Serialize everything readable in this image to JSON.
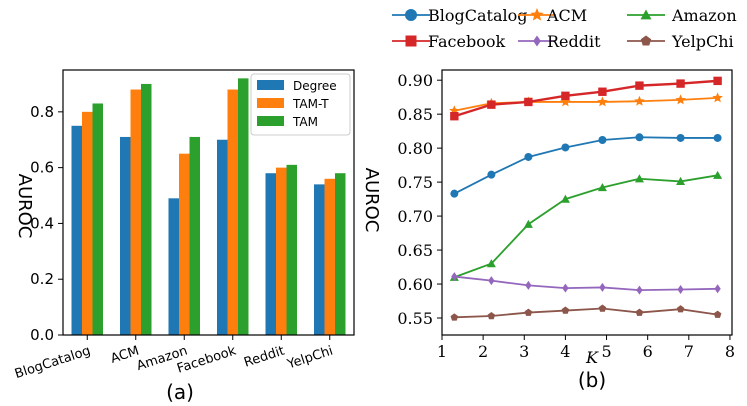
{
  "chart_data": [
    {
      "type": "bar",
      "caption": "(a)",
      "ylabel": "AUROC",
      "xlabel": "",
      "ylim": [
        0.0,
        0.95
      ],
      "yticks": [
        0.0,
        0.2,
        0.4,
        0.6,
        0.8
      ],
      "ytick_labels": [
        "0.0",
        "0.2",
        "0.4",
        "0.6",
        "0.8"
      ],
      "categories": [
        "BlogCatalog",
        "ACM",
        "Amazon",
        "Facebook",
        "Reddit",
        "YelpChi"
      ],
      "legend_position": "top-right",
      "series": [
        {
          "name": "Degree",
          "color": "#1f77b4",
          "values": [
            0.75,
            0.71,
            0.49,
            0.7,
            0.58,
            0.54
          ]
        },
        {
          "name": "TAM-T",
          "color": "#ff7f0e",
          "values": [
            0.8,
            0.88,
            0.65,
            0.88,
            0.6,
            0.56
          ]
        },
        {
          "name": "TAM",
          "color": "#2ca02c",
          "values": [
            0.83,
            0.9,
            0.71,
            0.92,
            0.61,
            0.58
          ]
        }
      ]
    },
    {
      "type": "line",
      "caption": "(b)",
      "ylabel": "AUROC",
      "xlabel": "K",
      "xlim": [
        1.0,
        8.05
      ],
      "ylim": [
        0.525,
        0.915
      ],
      "xticks": [
        1,
        2,
        3,
        4,
        5,
        6,
        7,
        8
      ],
      "xtick_labels": [
        "1",
        "2",
        "3",
        "4",
        "5",
        "6",
        "7",
        "8"
      ],
      "yticks": [
        0.55,
        0.6,
        0.65,
        0.7,
        0.75,
        0.8,
        0.85,
        0.9
      ],
      "ytick_labels": [
        "0.55",
        "0.60",
        "0.65",
        "0.70",
        "0.75",
        "0.80",
        "0.85",
        "0.90"
      ],
      "x": [
        1.3,
        2.2,
        3.1,
        4.0,
        4.9,
        5.8,
        6.8,
        7.7
      ],
      "legend_position": "top (outside)",
      "series": [
        {
          "name": "BlogCatalog",
          "color": "#1f77b4",
          "marker": "circle",
          "values": [
            0.733,
            0.761,
            0.787,
            0.801,
            0.812,
            0.816,
            0.815,
            0.815
          ]
        },
        {
          "name": "ACM",
          "color": "#ff7f0e",
          "marker": "star",
          "values": [
            0.855,
            0.866,
            0.868,
            0.868,
            0.868,
            0.869,
            0.871,
            0.874
          ]
        },
        {
          "name": "Amazon",
          "color": "#2ca02c",
          "marker": "triangle",
          "values": [
            0.61,
            0.63,
            0.688,
            0.725,
            0.742,
            0.755,
            0.751,
            0.76
          ]
        },
        {
          "name": "Facebook",
          "color": "#d62728",
          "marker": "square",
          "values": [
            0.847,
            0.864,
            0.868,
            0.877,
            0.883,
            0.892,
            0.895,
            0.899
          ]
        },
        {
          "name": "Reddit",
          "color": "#9467bd",
          "marker": "diamond",
          "values": [
            0.611,
            0.605,
            0.598,
            0.594,
            0.595,
            0.591,
            0.592,
            0.593
          ]
        },
        {
          "name": "YelpChi",
          "color": "#8c564b",
          "marker": "pentagon",
          "values": [
            0.551,
            0.553,
            0.558,
            0.561,
            0.564,
            0.558,
            0.563,
            0.555
          ]
        }
      ]
    }
  ]
}
